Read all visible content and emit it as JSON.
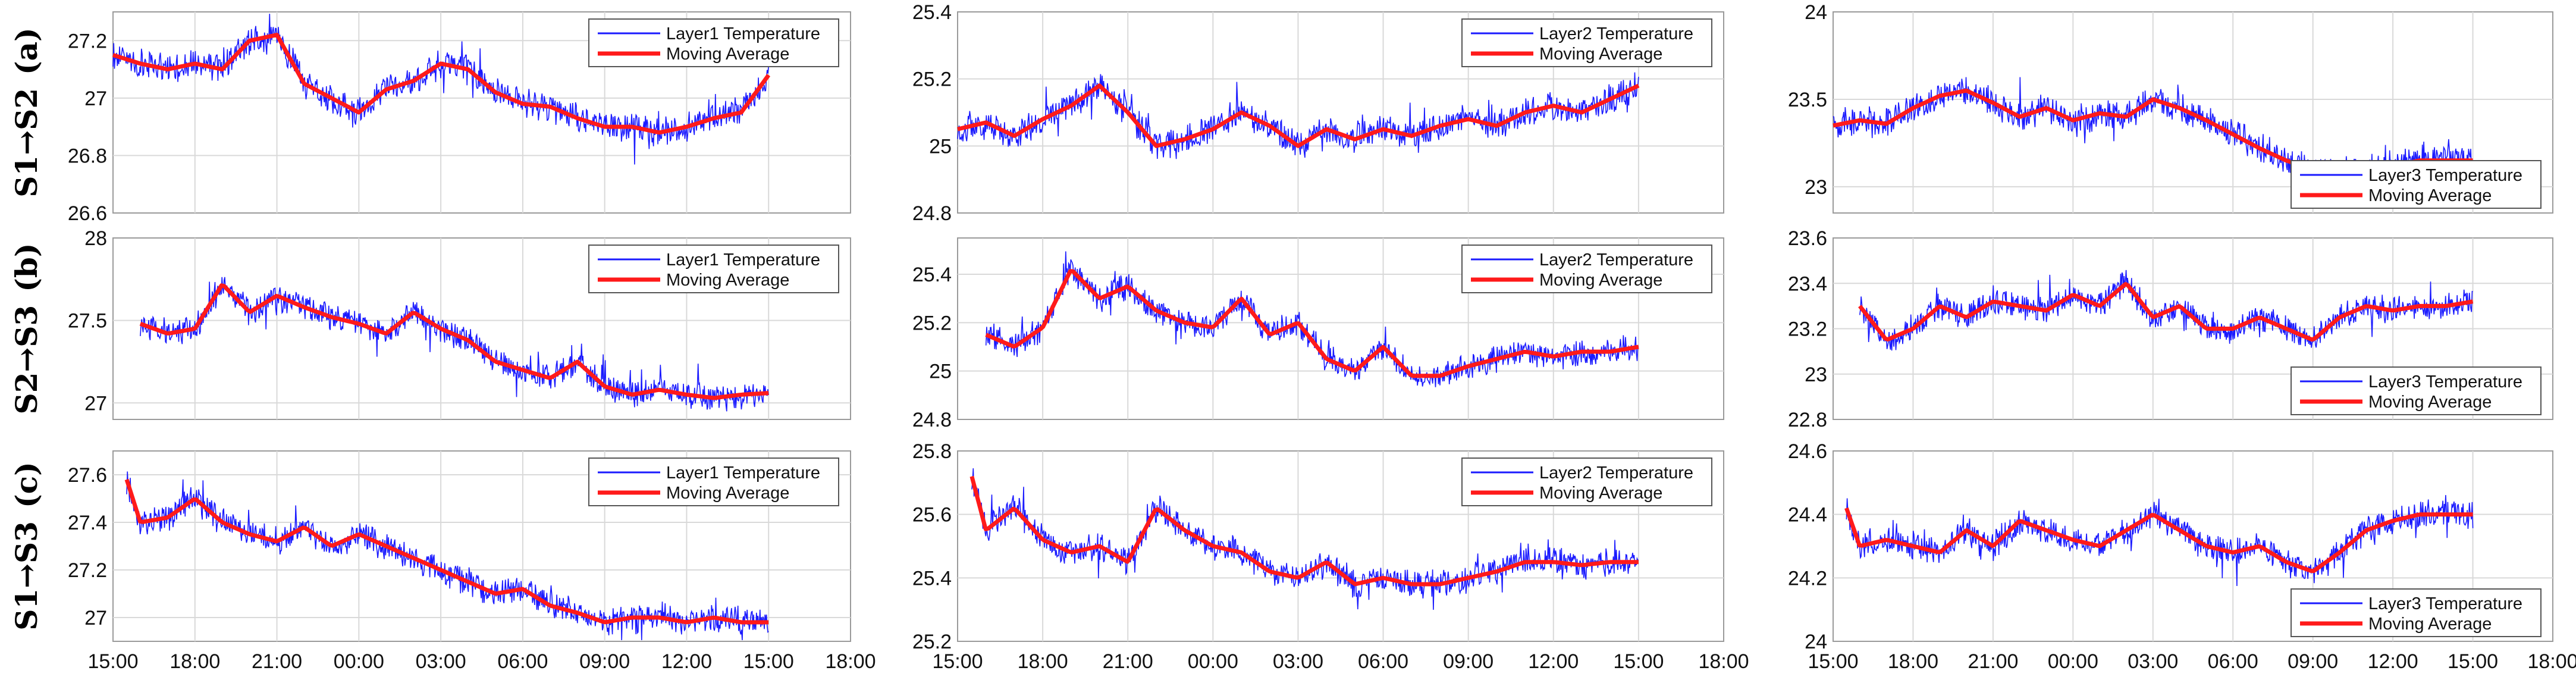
{
  "row_labels": [
    {
      "route": "S1→S2",
      "tag": "(a)"
    },
    {
      "route": "S2→S3",
      "tag": "(b)"
    },
    {
      "route": "S1→S3",
      "tag": "(c)"
    }
  ],
  "colors": {
    "raw": "#1a1aff",
    "avg": "#ff1a1a",
    "grid": "#d9d9d9"
  },
  "time_axis": {
    "ticks": [
      "15:00",
      "18:00",
      "21:00",
      "00:00",
      "03:00",
      "06:00",
      "09:00",
      "12:00",
      "15:00",
      "18:00"
    ]
  },
  "chart_data": [
    {
      "type": "line",
      "row": 0,
      "col": 0,
      "ylim": [
        26.6,
        27.3
      ],
      "yticks": [
        "26.6",
        "26.8",
        "27",
        "27.2"
      ],
      "grid": true,
      "legend_position": "top-right",
      "series": [
        {
          "name": "Layer1 Temperature",
          "style": "noisy"
        },
        {
          "name": "Moving Average",
          "x_hours": [
            0,
            1,
            2,
            3,
            4,
            5,
            6,
            7,
            8,
            9,
            10,
            11,
            12,
            13,
            14,
            15,
            16,
            17,
            18,
            19,
            20,
            21,
            22,
            23,
            24
          ],
          "values": [
            27.15,
            27.12,
            27.1,
            27.12,
            27.1,
            27.2,
            27.22,
            27.05,
            27.0,
            26.95,
            27.03,
            27.06,
            27.12,
            27.1,
            27.02,
            26.98,
            26.97,
            26.93,
            26.9,
            26.9,
            26.88,
            26.9,
            26.93,
            26.95,
            27.08
          ]
        }
      ]
    },
    {
      "type": "line",
      "row": 0,
      "col": 1,
      "ylim": [
        24.8,
        25.4
      ],
      "yticks": [
        "24.8",
        "25",
        "25.2",
        "25.4"
      ],
      "grid": true,
      "legend_position": "top-right",
      "series": [
        {
          "name": "Layer2 Temperature",
          "style": "noisy"
        },
        {
          "name": "Moving Average",
          "x_hours": [
            0,
            1,
            2,
            3,
            4,
            5,
            6,
            7,
            8,
            9,
            10,
            11,
            12,
            13,
            14,
            15,
            16,
            17,
            18,
            19,
            20,
            21,
            22,
            23,
            24
          ],
          "values": [
            25.05,
            25.07,
            25.03,
            25.08,
            25.12,
            25.18,
            25.1,
            25.0,
            25.02,
            25.05,
            25.1,
            25.06,
            25.0,
            25.05,
            25.02,
            25.05,
            25.03,
            25.06,
            25.08,
            25.06,
            25.1,
            25.12,
            25.1,
            25.14,
            25.18
          ]
        }
      ]
    },
    {
      "type": "line",
      "row": 0,
      "col": 2,
      "ylim": [
        22.85,
        24.0
      ],
      "yticks": [
        "23",
        "23.5",
        "24"
      ],
      "grid": true,
      "legend_position": "bottom-right",
      "series": [
        {
          "name": "Layer3 Temperature",
          "style": "noisy"
        },
        {
          "name": "Moving Average",
          "x_hours": [
            0,
            1,
            2,
            3,
            4,
            5,
            6,
            7,
            8,
            9,
            10,
            11,
            12,
            13,
            14,
            15,
            16,
            17,
            18,
            19,
            20,
            21,
            22,
            23,
            24
          ],
          "values": [
            23.35,
            23.38,
            23.36,
            23.45,
            23.52,
            23.55,
            23.48,
            23.4,
            23.45,
            23.38,
            23.42,
            23.4,
            23.5,
            23.45,
            23.38,
            23.3,
            23.22,
            23.15,
            23.1,
            23.08,
            23.1,
            23.12,
            23.15,
            23.15,
            23.15
          ]
        }
      ]
    },
    {
      "type": "line",
      "row": 1,
      "col": 0,
      "ylim": [
        26.9,
        28.0
      ],
      "yticks": [
        "27",
        "27.5",
        "28"
      ],
      "grid": true,
      "legend_position": "top-right",
      "series": [
        {
          "name": "Layer1 Temperature",
          "style": "noisy"
        },
        {
          "name": "Moving Average",
          "x_hours": [
            1,
            2,
            3,
            4,
            5,
            6,
            7,
            8,
            9,
            10,
            11,
            12,
            13,
            14,
            15,
            16,
            17,
            18,
            19,
            20,
            21,
            22,
            23,
            24
          ],
          "values": [
            27.48,
            27.42,
            27.45,
            27.72,
            27.55,
            27.65,
            27.58,
            27.52,
            27.48,
            27.42,
            27.55,
            27.45,
            27.38,
            27.25,
            27.2,
            27.15,
            27.25,
            27.1,
            27.05,
            27.08,
            27.05,
            27.03,
            27.05,
            27.06
          ]
        }
      ]
    },
    {
      "type": "line",
      "row": 1,
      "col": 1,
      "ylim": [
        24.8,
        25.55
      ],
      "yticks": [
        "24.8",
        "25",
        "25.2",
        "25.4"
      ],
      "grid": true,
      "legend_position": "top-right",
      "series": [
        {
          "name": "Layer2 Temperature",
          "style": "noisy"
        },
        {
          "name": "Moving Average",
          "x_hours": [
            1,
            2,
            3,
            4,
            5,
            6,
            7,
            8,
            9,
            10,
            11,
            12,
            13,
            14,
            15,
            16,
            17,
            18,
            19,
            20,
            21,
            22,
            23,
            24
          ],
          "values": [
            25.15,
            25.1,
            25.18,
            25.42,
            25.3,
            25.35,
            25.25,
            25.2,
            25.18,
            25.3,
            25.15,
            25.2,
            25.05,
            25.0,
            25.1,
            24.98,
            24.98,
            25.02,
            25.05,
            25.08,
            25.06,
            25.08,
            25.08,
            25.1
          ]
        }
      ]
    },
    {
      "type": "line",
      "row": 1,
      "col": 2,
      "ylim": [
        22.8,
        23.6
      ],
      "yticks": [
        "22.8",
        "23",
        "23.2",
        "23.4",
        "23.6"
      ],
      "grid": true,
      "legend_position": "bottom-right",
      "series": [
        {
          "name": "Layer3 Temperature",
          "style": "noisy"
        },
        {
          "name": "Moving Average",
          "x_hours": [
            1,
            2,
            3,
            4,
            5,
            6,
            7,
            8,
            9,
            10,
            11,
            12,
            13,
            14,
            15,
            16,
            17,
            18,
            19,
            20,
            21,
            22,
            23,
            24
          ],
          "values": [
            23.3,
            23.15,
            23.2,
            23.3,
            23.25,
            23.32,
            23.3,
            23.28,
            23.35,
            23.3,
            23.4,
            23.25,
            23.3,
            23.2,
            23.2,
            23.25,
            23.2,
            23.15,
            23.25,
            23.3,
            23.28,
            23.3,
            23.3,
            23.32
          ]
        }
      ]
    },
    {
      "type": "line",
      "row": 2,
      "col": 0,
      "ylim": [
        26.9,
        27.7
      ],
      "yticks": [
        "27",
        "27.2",
        "27.4",
        "27.6"
      ],
      "grid": true,
      "legend_position": "top-right",
      "series": [
        {
          "name": "Layer1 Temperature",
          "style": "noisy"
        },
        {
          "name": "Moving Average",
          "x_hours": [
            0.5,
            1,
            2,
            3,
            4,
            5,
            6,
            7,
            8,
            9,
            10,
            11,
            12,
            13,
            14,
            15,
            16,
            17,
            18,
            19,
            20,
            21,
            22,
            23,
            24
          ],
          "values": [
            27.58,
            27.4,
            27.42,
            27.5,
            27.4,
            27.35,
            27.32,
            27.38,
            27.3,
            27.35,
            27.3,
            27.25,
            27.2,
            27.15,
            27.1,
            27.12,
            27.05,
            27.02,
            26.98,
            27.0,
            27.0,
            26.98,
            27.0,
            26.98,
            26.98
          ]
        }
      ]
    },
    {
      "type": "line",
      "row": 2,
      "col": 1,
      "ylim": [
        25.2,
        25.8
      ],
      "yticks": [
        "25.2",
        "25.4",
        "25.6",
        "25.8"
      ],
      "grid": true,
      "legend_position": "top-right",
      "series": [
        {
          "name": "Layer2 Temperature",
          "style": "noisy"
        },
        {
          "name": "Moving Average",
          "x_hours": [
            0.5,
            1,
            2,
            3,
            4,
            5,
            6,
            7,
            8,
            9,
            10,
            11,
            12,
            13,
            14,
            15,
            16,
            17,
            18,
            19,
            20,
            21,
            22,
            23,
            24
          ],
          "values": [
            25.72,
            25.55,
            25.62,
            25.52,
            25.48,
            25.5,
            25.45,
            25.62,
            25.55,
            25.5,
            25.48,
            25.42,
            25.4,
            25.45,
            25.38,
            25.4,
            25.38,
            25.38,
            25.4,
            25.42,
            25.45,
            25.45,
            25.44,
            25.45,
            25.45
          ]
        }
      ]
    },
    {
      "type": "line",
      "row": 2,
      "col": 2,
      "ylim": [
        24.0,
        24.6
      ],
      "yticks": [
        "24",
        "24.2",
        "24.4",
        "24.6"
      ],
      "grid": true,
      "legend_position": "bottom-right",
      "series": [
        {
          "name": "Layer3 Temperature",
          "style": "noisy"
        },
        {
          "name": "Moving Average",
          "x_hours": [
            0.5,
            1,
            2,
            3,
            4,
            5,
            6,
            7,
            8,
            9,
            10,
            11,
            12,
            13,
            14,
            15,
            16,
            17,
            18,
            19,
            20,
            21,
            22,
            23,
            24
          ],
          "values": [
            24.42,
            24.3,
            24.32,
            24.3,
            24.28,
            24.35,
            24.3,
            24.38,
            24.35,
            24.32,
            24.3,
            24.35,
            24.4,
            24.35,
            24.3,
            24.28,
            24.3,
            24.25,
            24.22,
            24.28,
            24.35,
            24.38,
            24.4,
            24.4,
            24.4
          ]
        }
      ]
    }
  ]
}
